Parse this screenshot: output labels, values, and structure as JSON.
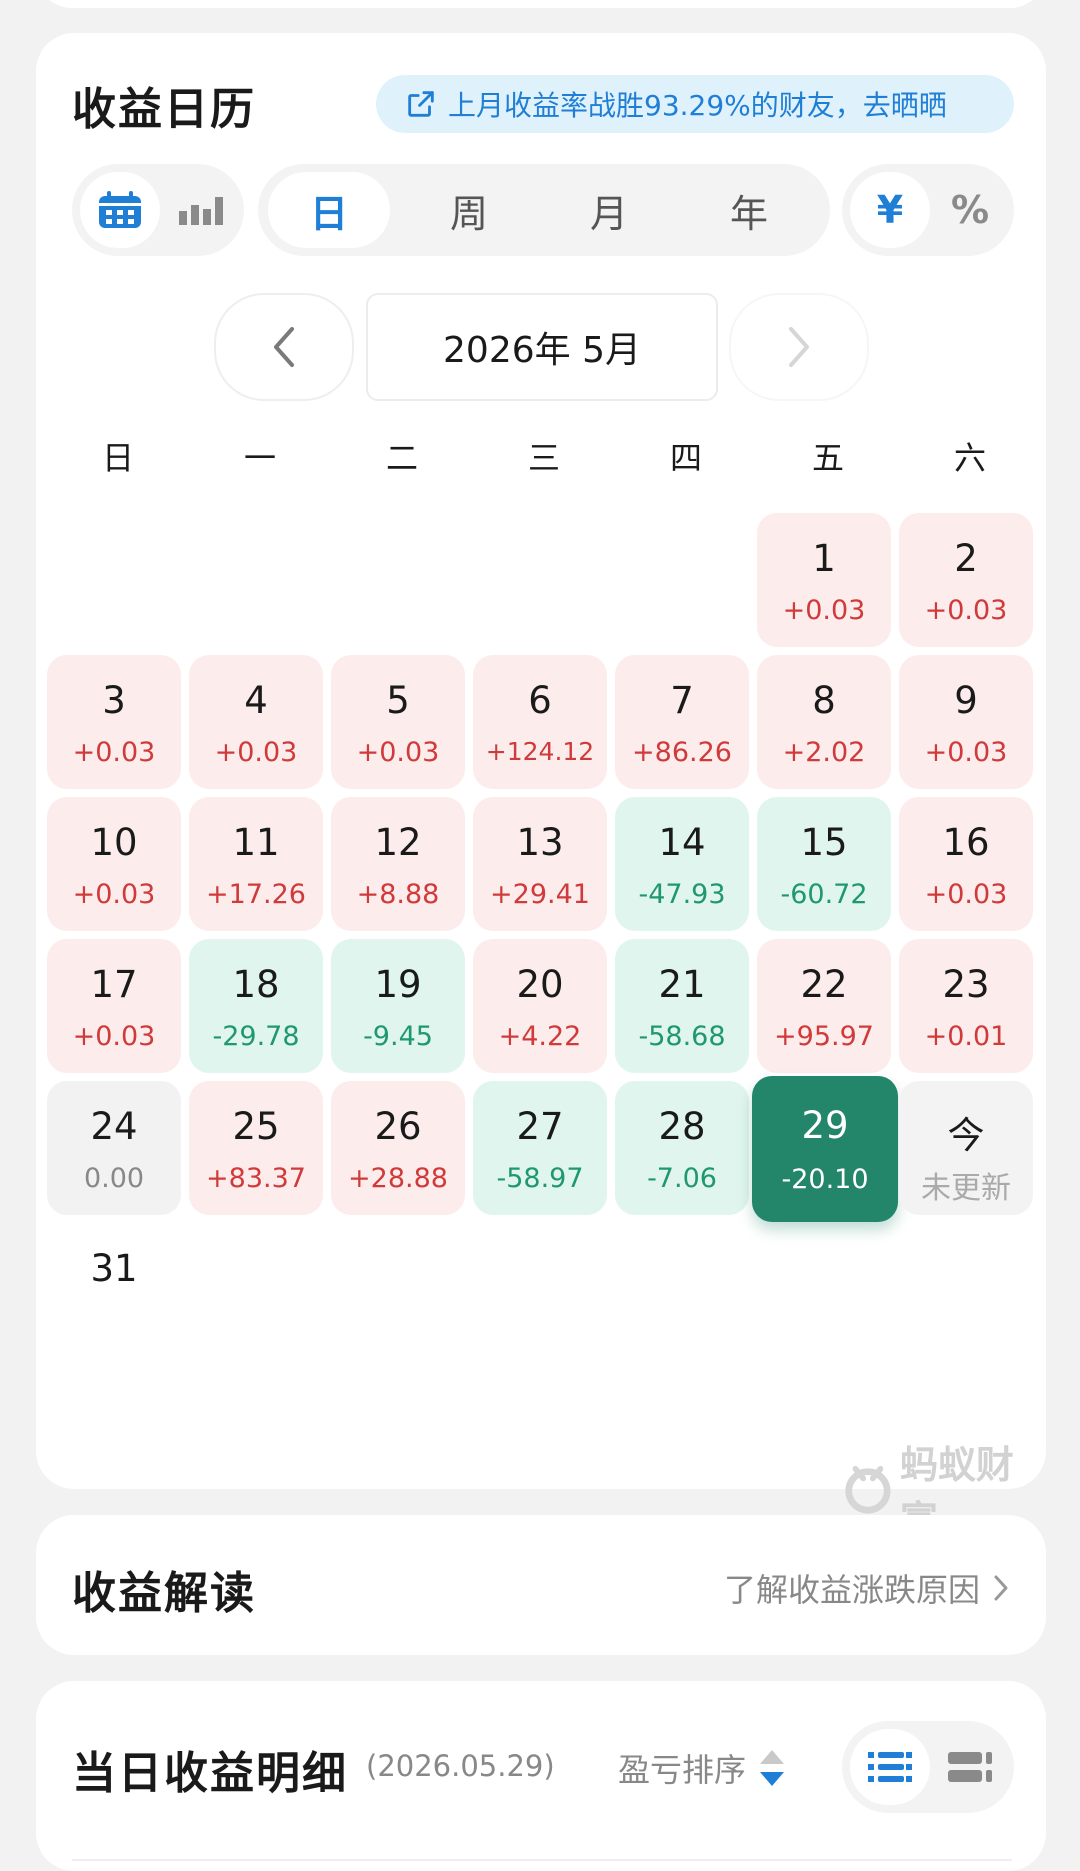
{
  "calendar": {
    "title": "收益日历",
    "banner": "上月收益率战胜93.29%的财友，去晒晒",
    "period_tabs": [
      "日",
      "周",
      "月",
      "年"
    ],
    "unit_toggle": [
      "¥",
      "%"
    ],
    "month_label": "2026年 5月",
    "weekdays": [
      "日",
      "一",
      "二",
      "三",
      "四",
      "五",
      "六"
    ],
    "days": [
      {
        "d": "1",
        "v": "+0.03"
      },
      {
        "d": "2",
        "v": "+0.03"
      },
      {
        "d": "3",
        "v": "+0.03"
      },
      {
        "d": "4",
        "v": "+0.03"
      },
      {
        "d": "5",
        "v": "+0.03"
      },
      {
        "d": "6",
        "v": "+124.12"
      },
      {
        "d": "7",
        "v": "+86.26"
      },
      {
        "d": "8",
        "v": "+2.02"
      },
      {
        "d": "9",
        "v": "+0.03"
      },
      {
        "d": "10",
        "v": "+0.03"
      },
      {
        "d": "11",
        "v": "+17.26"
      },
      {
        "d": "12",
        "v": "+8.88"
      },
      {
        "d": "13",
        "v": "+29.41"
      },
      {
        "d": "14",
        "v": "-47.93"
      },
      {
        "d": "15",
        "v": "-60.72"
      },
      {
        "d": "16",
        "v": "+0.03"
      },
      {
        "d": "17",
        "v": "+0.03"
      },
      {
        "d": "18",
        "v": "-29.78"
      },
      {
        "d": "19",
        "v": "-9.45"
      },
      {
        "d": "20",
        "v": "+4.22"
      },
      {
        "d": "21",
        "v": "-58.68"
      },
      {
        "d": "22",
        "v": "+95.97"
      },
      {
        "d": "23",
        "v": "+0.01"
      },
      {
        "d": "24",
        "v": "0.00"
      },
      {
        "d": "25",
        "v": "+83.37"
      },
      {
        "d": "26",
        "v": "+28.88"
      },
      {
        "d": "27",
        "v": "-58.97"
      },
      {
        "d": "28",
        "v": "-7.06"
      },
      {
        "d": "29",
        "v": "-20.10"
      },
      {
        "d": "今",
        "v": "未更新"
      },
      {
        "d": "31",
        "v": ""
      }
    ],
    "selected_day": "29",
    "watermark": "蚂蚁财富",
    "colors": {
      "gain_bg": "#fcecec",
      "gain_text": "#d03a3a",
      "loss_bg": "#e0f5ee",
      "loss_text": "#1f9870",
      "selected": "#23856a",
      "accent": "#1f7fd6"
    }
  },
  "interpretation": {
    "title": "收益解读",
    "link": "了解收益涨跌原因"
  },
  "detail": {
    "title": "当日收益明细",
    "date": "(2026.05.29)",
    "sort_label": "盈亏排序"
  }
}
